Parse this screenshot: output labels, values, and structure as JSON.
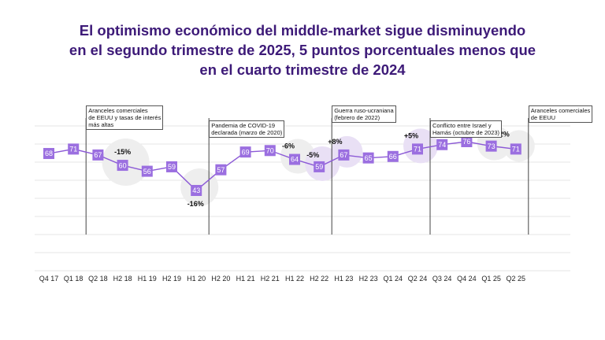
{
  "title_lines": [
    "El optimismo económico del middle-market sigue disminuyendo",
    "en el segundo trimestre de 2025, 5 puntos porcentuales menos que",
    "en el cuarto trimestre de 2024"
  ],
  "colors": {
    "title": "#3d1a78",
    "marker": "#9b6fe0",
    "line": "#8c5ad6",
    "grid": "#e4e4e4",
    "bubble_gray": "#eeeeee",
    "bubble_purple": "#e9e0f5"
  },
  "chart_data": {
    "type": "line",
    "categories": [
      "Q4 17",
      "Q1 18",
      "Q2 18",
      "H2 18",
      "H1 19",
      "H2 19",
      "H1 20",
      "H2 20",
      "H1 21",
      "H2 21",
      "H1 22",
      "H2 22",
      "H1 23",
      "H2 23",
      "Q1 24",
      "Q2 24",
      "Q3 24",
      "Q4 24",
      "Q1 25",
      "Q2 25"
    ],
    "values": [
      68,
      71,
      67,
      60,
      56,
      59,
      43,
      57,
      69,
      70,
      64,
      59,
      67,
      65,
      66,
      71,
      74,
      76,
      73,
      71
    ],
    "change_labels": [
      {
        "at": 3,
        "text": "-15%"
      },
      {
        "at": 6,
        "text": "-16%"
      },
      {
        "at": 10,
        "text": "-6%"
      },
      {
        "at": 11,
        "text": "-5%"
      },
      {
        "at": 12,
        "text": "+8%"
      },
      {
        "at": 15,
        "text": "+5%"
      },
      {
        "at": 18,
        "text": "-3%"
      },
      {
        "at": 19,
        "text": "-2%"
      }
    ],
    "annotations": [
      {
        "at": 1,
        "text": "Aranceles comerciales\nde EEUU y tasas de interés\nmás altas"
      },
      {
        "at": 6,
        "text": "Pandemia de COVID-19\ndeclarada (marzo de 2020)"
      },
      {
        "at": 11,
        "text": "Guerra ruso-ucraniana\n(febrero de 2022)"
      },
      {
        "at": 15,
        "text": "Conflicto entre Israel y\nHamás (octubre de 2023)"
      },
      {
        "at": 19,
        "text": "Aranceles comerciales\nde EEUU"
      }
    ],
    "grid": true
  }
}
